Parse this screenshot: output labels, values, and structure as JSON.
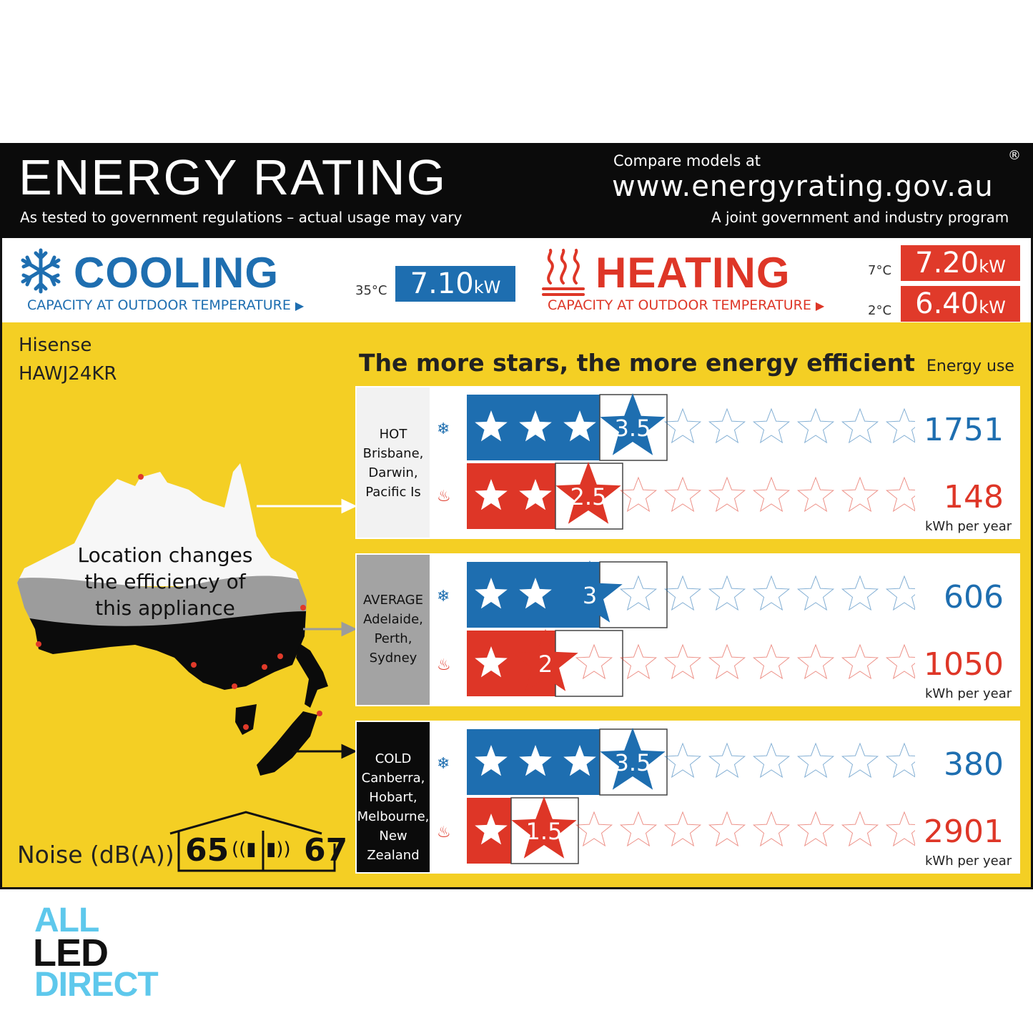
{
  "header": {
    "title": "ENERGY RATING",
    "subtitle": "As tested to government regulations – actual usage may vary",
    "compare": "Compare models at",
    "url": "www.energyrating.gov.au",
    "joint": "A joint government and industry program",
    "registered": "®"
  },
  "cooling": {
    "title": "COOLING",
    "subtitle": "CAPACITY AT OUTDOOR TEMPERATURE",
    "temp": "35°C",
    "value": "7.10",
    "unit": "kW"
  },
  "heating": {
    "title": "HEATING",
    "subtitle": "CAPACITY AT OUTDOOR TEMPERATURE",
    "temp_a": "7°C",
    "value_a": "7.20",
    "temp_b": "2°C",
    "value_b": "6.40",
    "unit": "kW"
  },
  "product": {
    "brand": "Hisense",
    "model": "HAWJ24KR"
  },
  "tagline": "The more stars, the more energy efficient",
  "energy_use_label": "Energy use",
  "kwh_label": "kWh per year",
  "map_caption": [
    "Location changes",
    "the efficiency of",
    "this appliance"
  ],
  "max_stars": 10,
  "colors": {
    "cooling": "#1e6eb0",
    "heating": "#de3627",
    "label_bg": "#f4cf24",
    "header_bg": "#0b0b0b"
  },
  "zones": [
    {
      "name": "HOT",
      "cities": [
        "Brisbane,",
        "Darwin,",
        "Pacific Is"
      ],
      "cool_stars": 3.5,
      "cool_energy": "1751",
      "heat_stars": 2.5,
      "heat_energy": "148",
      "bg": "#f2f2f2",
      "fg": "#111"
    },
    {
      "name": "AVERAGE",
      "cities": [
        "Adelaide,",
        "Perth,",
        "Sydney"
      ],
      "cool_stars": 3,
      "cool_energy": "606",
      "heat_stars": 2,
      "heat_energy": "1050",
      "bg": "#a3a3a3",
      "fg": "#111"
    },
    {
      "name": "COLD",
      "cities": [
        "Canberra,",
        "Hobart,",
        "Melbourne,",
        "New Zealand"
      ],
      "cool_stars": 3.5,
      "cool_energy": "380",
      "heat_stars": 1.5,
      "heat_energy": "2901",
      "bg": "#0b0b0b",
      "fg": "#ffffff"
    }
  ],
  "noise": {
    "label": "Noise (dB(A))",
    "indoor": "65",
    "outdoor": "67"
  },
  "logo": {
    "line1": "ALL",
    "line2": "LED",
    "line3": "DIRECT"
  }
}
